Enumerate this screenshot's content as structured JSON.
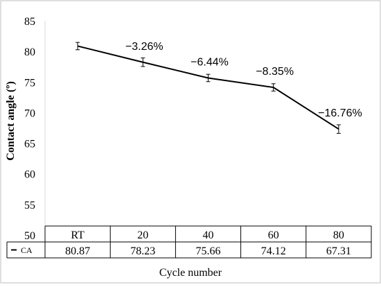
{
  "chart_data": {
    "type": "line",
    "ylabel": "Contact angle (º)",
    "xlabel": "Cycle number",
    "ylim": [
      50,
      85
    ],
    "yticks": [
      50,
      55,
      60,
      65,
      70,
      75,
      80,
      85
    ],
    "categories": [
      "RT",
      "20",
      "40",
      "60",
      "80"
    ],
    "series": [
      {
        "name": "CA",
        "values": [
          80.87,
          78.23,
          75.66,
          74.12,
          67.31
        ],
        "value_labels": [
          "80.87",
          "78.23",
          "75.66",
          "74.12",
          "67.31"
        ],
        "error": [
          0.6,
          0.7,
          0.6,
          0.6,
          0.7
        ],
        "color": "#000000"
      }
    ],
    "annotations": [
      "",
      "−3.26%",
      "−6.44%",
      "−8.35%",
      "−16.76%"
    ],
    "data_table": true,
    "legend_marker": "–",
    "grid": false
  }
}
